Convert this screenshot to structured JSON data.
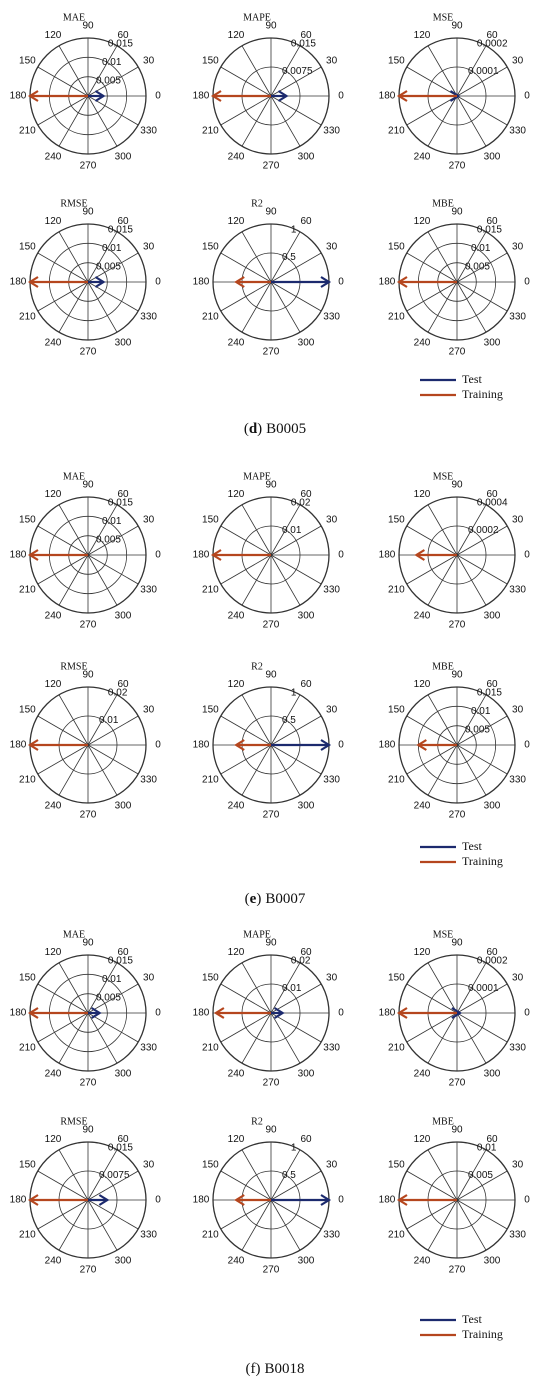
{
  "panels": [
    {
      "caption": [
        "(",
        "d",
        ")",
        "B0005"
      ],
      "caption_bold": true,
      "legend": [
        {
          "name": "Test",
          "color": "#1c2a6e"
        },
        {
          "name": "Training",
          "color": "#b5461e"
        }
      ],
      "chart_data": [
        {
          "type": "polar",
          "title": "MAE",
          "rlim": [
            0,
            0.015
          ],
          "rticks": [
            0.005,
            0.01,
            0.015
          ],
          "thetaticks": [
            0,
            30,
            60,
            90,
            120,
            150,
            180,
            210,
            240,
            270,
            300,
            330
          ],
          "series": [
            {
              "angle": 0,
              "r": 0.004
            },
            {
              "angle": 180,
              "r": 0.015
            }
          ]
        },
        {
          "type": "polar",
          "title": "MAPE",
          "rlim": [
            0,
            0.015
          ],
          "rticks": [
            0.0075,
            0.015
          ],
          "thetaticks": [
            0,
            30,
            60,
            90,
            120,
            150,
            180,
            210,
            240,
            270,
            300,
            330
          ],
          "series": [
            {
              "angle": 0,
              "r": 0.004
            },
            {
              "angle": 180,
              "r": 0.015
            }
          ]
        },
        {
          "type": "polar",
          "title": "MSE",
          "rlim": [
            0,
            0.0002
          ],
          "rticks": [
            0.0001,
            0.0002
          ],
          "thetaticks": [
            0,
            30,
            60,
            90,
            120,
            150,
            180,
            210,
            240,
            270,
            300,
            330
          ],
          "series": [
            {
              "angle": 0,
              "r": 5e-06
            },
            {
              "angle": 180,
              "r": 0.0002
            }
          ]
        },
        {
          "type": "polar",
          "title": "RMSE",
          "rlim": [
            0,
            0.015
          ],
          "rticks": [
            0.005,
            0.01,
            0.015
          ],
          "thetaticks": [
            0,
            30,
            60,
            90,
            120,
            150,
            180,
            210,
            240,
            270,
            300,
            330
          ],
          "series": [
            {
              "angle": 0,
              "r": 0.004
            },
            {
              "angle": 180,
              "r": 0.015
            }
          ]
        },
        {
          "type": "polar",
          "title": "R2",
          "rlim": [
            0,
            1
          ],
          "rticks": [
            0.5,
            1
          ],
          "thetaticks": [
            0,
            30,
            60,
            90,
            120,
            150,
            180,
            210,
            240,
            270,
            300,
            330
          ],
          "series": [
            {
              "angle": 0,
              "r": 1
            },
            {
              "angle": 180,
              "r": 0.6
            }
          ]
        },
        {
          "type": "polar",
          "title": "MBE",
          "rlim": [
            0,
            0.015
          ],
          "rticks": [
            0.005,
            0.01,
            0.015
          ],
          "thetaticks": [
            0,
            30,
            60,
            90,
            120,
            150,
            180,
            210,
            240,
            270,
            300,
            330
          ],
          "series": [
            {
              "angle": 0,
              "r": 0
            },
            {
              "angle": 180,
              "r": 0.015
            }
          ]
        }
      ]
    },
    {
      "caption": [
        "(",
        "e",
        ")",
        "B0007"
      ],
      "caption_bold": true,
      "legend": [
        {
          "name": "Test",
          "color": "#1c2a6e"
        },
        {
          "name": "Training",
          "color": "#b5461e"
        }
      ],
      "chart_data": [
        {
          "type": "polar",
          "title": "MAE",
          "rlim": [
            0,
            0.015
          ],
          "rticks": [
            0.005,
            0.01,
            0.015
          ],
          "thetaticks": [
            0,
            30,
            60,
            90,
            120,
            150,
            180,
            210,
            240,
            270,
            300,
            330
          ],
          "series": [
            {
              "angle": 0,
              "r": 0
            },
            {
              "angle": 180,
              "r": 0.015
            }
          ]
        },
        {
          "type": "polar",
          "title": "MAPE",
          "rlim": [
            0,
            0.02
          ],
          "rticks": [
            0.01,
            0.02
          ],
          "thetaticks": [
            0,
            30,
            60,
            90,
            120,
            150,
            180,
            210,
            240,
            270,
            300,
            330
          ],
          "series": [
            {
              "angle": 0,
              "r": 0
            },
            {
              "angle": 180,
              "r": 0.02
            }
          ]
        },
        {
          "type": "polar",
          "title": "MSE",
          "rlim": [
            0,
            0.0004
          ],
          "rticks": [
            0.0002,
            0.0004
          ],
          "thetaticks": [
            0,
            30,
            60,
            90,
            120,
            150,
            180,
            210,
            240,
            270,
            300,
            330
          ],
          "series": [
            {
              "angle": 0,
              "r": 0
            },
            {
              "angle": 180,
              "r": 0.00028
            }
          ]
        },
        {
          "type": "polar",
          "title": "RMSE",
          "rlim": [
            0,
            0.02
          ],
          "rticks": [
            0.01,
            0.02
          ],
          "thetaticks": [
            0,
            30,
            60,
            90,
            120,
            150,
            180,
            210,
            240,
            270,
            300,
            330
          ],
          "series": [
            {
              "angle": 0,
              "r": 0
            },
            {
              "angle": 180,
              "r": 0.02
            }
          ]
        },
        {
          "type": "polar",
          "title": "R2",
          "rlim": [
            0,
            1
          ],
          "rticks": [
            0.5,
            1
          ],
          "thetaticks": [
            0,
            30,
            60,
            90,
            120,
            150,
            180,
            210,
            240,
            270,
            300,
            330
          ],
          "series": [
            {
              "angle": 0,
              "r": 1
            },
            {
              "angle": 180,
              "r": 0.6
            }
          ]
        },
        {
          "type": "polar",
          "title": "MBE",
          "rlim": [
            0,
            0.015
          ],
          "rticks": [
            0.005,
            0.01,
            0.015
          ],
          "thetaticks": [
            0,
            30,
            60,
            90,
            120,
            150,
            180,
            210,
            240,
            270,
            300,
            330
          ],
          "series": [
            {
              "angle": 0,
              "r": 0
            },
            {
              "angle": 180,
              "r": 0.01
            }
          ]
        }
      ]
    },
    {
      "caption": [
        "(",
        "f",
        ")",
        "B0018"
      ],
      "caption_bold": false,
      "legend": [
        {
          "name": "Test",
          "color": "#1c2a6e"
        },
        {
          "name": "Training",
          "color": "#b5461e"
        }
      ],
      "chart_data": [
        {
          "type": "polar",
          "title": "MAE",
          "rlim": [
            0,
            0.015
          ],
          "rticks": [
            0.005,
            0.01,
            0.015
          ],
          "thetaticks": [
            0,
            30,
            60,
            90,
            120,
            150,
            180,
            210,
            240,
            270,
            300,
            330
          ],
          "series": [
            {
              "angle": 0,
              "r": 0.003
            },
            {
              "angle": 180,
              "r": 0.015
            }
          ]
        },
        {
          "type": "polar",
          "title": "MAPE",
          "rlim": [
            0,
            0.02
          ],
          "rticks": [
            0.01,
            0.02
          ],
          "thetaticks": [
            0,
            30,
            60,
            90,
            120,
            150,
            180,
            210,
            240,
            270,
            300,
            330
          ],
          "series": [
            {
              "angle": 0,
              "r": 0.004
            },
            {
              "angle": 180,
              "r": 0.019
            }
          ]
        },
        {
          "type": "polar",
          "title": "MSE",
          "rlim": [
            0,
            0.0002
          ],
          "rticks": [
            0.0001,
            0.0002
          ],
          "thetaticks": [
            0,
            30,
            60,
            90,
            120,
            150,
            180,
            210,
            240,
            270,
            300,
            330
          ],
          "series": [
            {
              "angle": 0,
              "r": 1e-05
            },
            {
              "angle": 180,
              "r": 0.0002
            }
          ]
        },
        {
          "type": "polar",
          "title": "RMSE",
          "rlim": [
            0,
            0.015
          ],
          "rticks": [
            0.0075,
            0.015
          ],
          "thetaticks": [
            0,
            30,
            60,
            90,
            120,
            150,
            180,
            210,
            240,
            270,
            300,
            330
          ],
          "series": [
            {
              "angle": 0,
              "r": 0.005
            },
            {
              "angle": 180,
              "r": 0.015
            }
          ]
        },
        {
          "type": "polar",
          "title": "R2",
          "rlim": [
            0,
            1
          ],
          "rticks": [
            0.5,
            1
          ],
          "thetaticks": [
            0,
            30,
            60,
            90,
            120,
            150,
            180,
            210,
            240,
            270,
            300,
            330
          ],
          "series": [
            {
              "angle": 0,
              "r": 1
            },
            {
              "angle": 180,
              "r": 0.6
            }
          ]
        },
        {
          "type": "polar",
          "title": "MBE",
          "rlim": [
            0,
            0.01
          ],
          "rticks": [
            0.005,
            0.01
          ],
          "thetaticks": [
            0,
            30,
            60,
            90,
            120,
            150,
            180,
            210,
            240,
            270,
            300,
            330
          ],
          "series": [
            {
              "angle": 0,
              "r": 0
            },
            {
              "angle": 180,
              "r": 0.01
            }
          ]
        }
      ]
    }
  ]
}
